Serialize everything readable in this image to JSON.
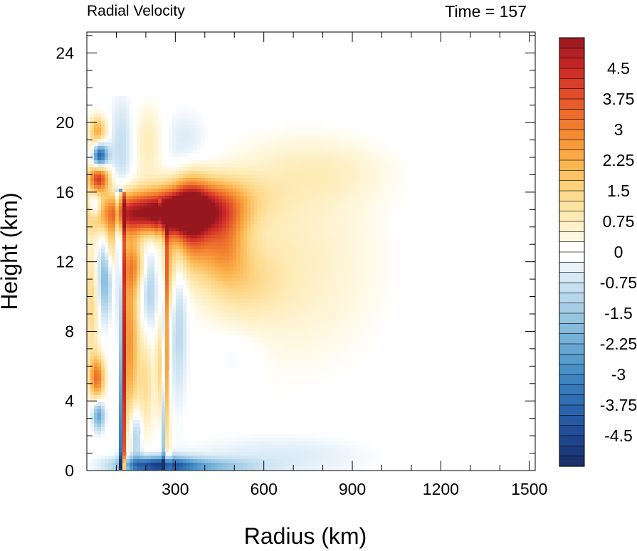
{
  "chart_data": {
    "type": "heatmap",
    "title_left": "Radial Velocity",
    "title_right": "Time = 157",
    "xlabel": "Radius (km)",
    "ylabel": "Height (km)",
    "xlim": [
      0,
      1520
    ],
    "ylim": [
      0,
      25.2
    ],
    "x_ticks": [
      300,
      600,
      900,
      1200,
      1500
    ],
    "x_tick_labels": [
      "300",
      "600",
      "900",
      "1200",
      "1500"
    ],
    "y_ticks": [
      0,
      4,
      8,
      12,
      16,
      20,
      24
    ],
    "y_tick_labels": [
      "0",
      "4",
      "8",
      "12",
      "16",
      "20",
      "24"
    ],
    "colorbar": {
      "min": -5.25,
      "max": 5.25,
      "step": 0.25,
      "labels": [
        "4.5",
        "3.75",
        "3",
        "2.25",
        "1.5",
        "0.75",
        "0",
        "-0.75",
        "-1.5",
        "-2.25",
        "-3",
        "-3.75",
        "-4.5"
      ],
      "label_values": [
        4.5,
        3.75,
        3,
        2.25,
        1.5,
        0.75,
        0,
        -0.75,
        -1.5,
        -2.25,
        -3,
        -3.75,
        -4.5
      ]
    },
    "features": [
      {
        "kind": "blob",
        "x": 240,
        "y": 14.8,
        "sx": 150,
        "sy": 0.85,
        "v": 5.5
      },
      {
        "kind": "blob",
        "x": 350,
        "y": 14.3,
        "sx": 45,
        "sy": 1.8,
        "v": 3.5
      },
      {
        "kind": "blob",
        "x": 460,
        "y": 13.3,
        "sx": 55,
        "sy": 1.6,
        "v": 2.4
      },
      {
        "kind": "blob",
        "x": 420,
        "y": 15.8,
        "sx": 120,
        "sy": 0.9,
        "v": 1.6
      },
      {
        "kind": "blob",
        "x": 700,
        "y": 12.0,
        "sx": 200,
        "sy": 4.0,
        "v": 0.7
      },
      {
        "kind": "blob",
        "x": 780,
        "y": 17.2,
        "sx": 170,
        "sy": 1.3,
        "v": 0.55
      },
      {
        "kind": "blob",
        "x": 530,
        "y": 11.0,
        "sx": 90,
        "sy": 1.5,
        "v": 0.9
      },
      {
        "kind": "blob",
        "x": 40,
        "y": 16.8,
        "sx": 25,
        "sy": 0.55,
        "v": 4.2
      },
      {
        "kind": "blob",
        "x": 38,
        "y": 19.5,
        "sx": 20,
        "sy": 0.6,
        "v": 2.4
      },
      {
        "kind": "blob",
        "x": 20,
        "y": 18.2,
        "sx": 15,
        "sy": 0.5,
        "v": 1.8
      },
      {
        "kind": "blob",
        "x": 40,
        "y": 18.1,
        "sx": 20,
        "sy": 0.5,
        "v": -4.8
      },
      {
        "kind": "blob",
        "x": 28,
        "y": 15.2,
        "sx": 15,
        "sy": 0.5,
        "v": -2.0
      },
      {
        "kind": "blob",
        "x": 35,
        "y": 5.3,
        "sx": 18,
        "sy": 0.9,
        "v": 3.2
      },
      {
        "kind": "blob",
        "x": 40,
        "y": 3.2,
        "sx": 14,
        "sy": 0.6,
        "v": -2.6
      },
      {
        "kind": "blob",
        "x": 15,
        "y": 9.5,
        "sx": 18,
        "sy": 2.5,
        "v": 1.4
      },
      {
        "kind": "blob",
        "x": 60,
        "y": 11.0,
        "sx": 16,
        "sy": 1.6,
        "v": -2.0
      },
      {
        "kind": "blob",
        "x": 80,
        "y": 13.0,
        "sx": 14,
        "sy": 1.0,
        "v": 1.3
      },
      {
        "kind": "blob",
        "x": 145,
        "y": 7.5,
        "sx": 22,
        "sy": 3.8,
        "v": 2.7
      },
      {
        "kind": "blob",
        "x": 160,
        "y": 11.8,
        "sx": 30,
        "sy": 1.0,
        "v": 1.9
      },
      {
        "kind": "blob",
        "x": 215,
        "y": 10.5,
        "sx": 25,
        "sy": 1.8,
        "v": -1.4
      },
      {
        "kind": "blob",
        "x": 270,
        "y": 11.5,
        "sx": 20,
        "sy": 2.0,
        "v": 2.0
      },
      {
        "kind": "blob",
        "x": 310,
        "y": 8.5,
        "sx": 22,
        "sy": 3.0,
        "v": -1.2
      },
      {
        "kind": "blob",
        "x": 255,
        "y": 6.0,
        "sx": 14,
        "sy": 2.0,
        "v": 1.8
      },
      {
        "kind": "blob",
        "x": 165,
        "y": 2.0,
        "sx": 15,
        "sy": 1.2,
        "v": -1.8
      },
      {
        "kind": "blob",
        "x": 200,
        "y": 5.0,
        "sx": 18,
        "sy": 2.2,
        "v": 1.2
      },
      {
        "kind": "blob",
        "x": 120,
        "y": 18.5,
        "sx": 30,
        "sy": 2.0,
        "v": -1.0
      },
      {
        "kind": "blob",
        "x": 210,
        "y": 18.8,
        "sx": 40,
        "sy": 1.5,
        "v": 0.9
      },
      {
        "kind": "blob",
        "x": 330,
        "y": 18.5,
        "sx": 60,
        "sy": 1.5,
        "v": -0.7
      },
      {
        "kind": "blob",
        "x": 230,
        "y": 0.3,
        "sx": 90,
        "sy": 0.35,
        "v": -4.2
      },
      {
        "kind": "blob",
        "x": 400,
        "y": 0.25,
        "sx": 120,
        "sy": 0.3,
        "v": -1.6
      },
      {
        "kind": "blob",
        "x": 650,
        "y": 0.8,
        "sx": 220,
        "sy": 0.9,
        "v": -0.55
      },
      {
        "kind": "blob",
        "x": 500,
        "y": 6.5,
        "sx": 60,
        "sy": 1.0,
        "v": -0.35
      },
      {
        "kind": "vline",
        "x0": 115,
        "x1": 110,
        "y0": 0,
        "y1": 16.2,
        "w": 5,
        "v": -5.0
      },
      {
        "kind": "vline",
        "x0": 124,
        "x1": 119,
        "y0": 0,
        "y1": 16.0,
        "w": 6,
        "v": 4.2
      },
      {
        "kind": "vline",
        "x0": 265,
        "x1": 255,
        "y0": 0,
        "y1": 15.5,
        "w": 6,
        "v": -2.2
      },
      {
        "kind": "vline",
        "x0": 275,
        "x1": 264,
        "y0": 0,
        "y1": 15.5,
        "w": 6,
        "v": 2.2
      }
    ]
  }
}
